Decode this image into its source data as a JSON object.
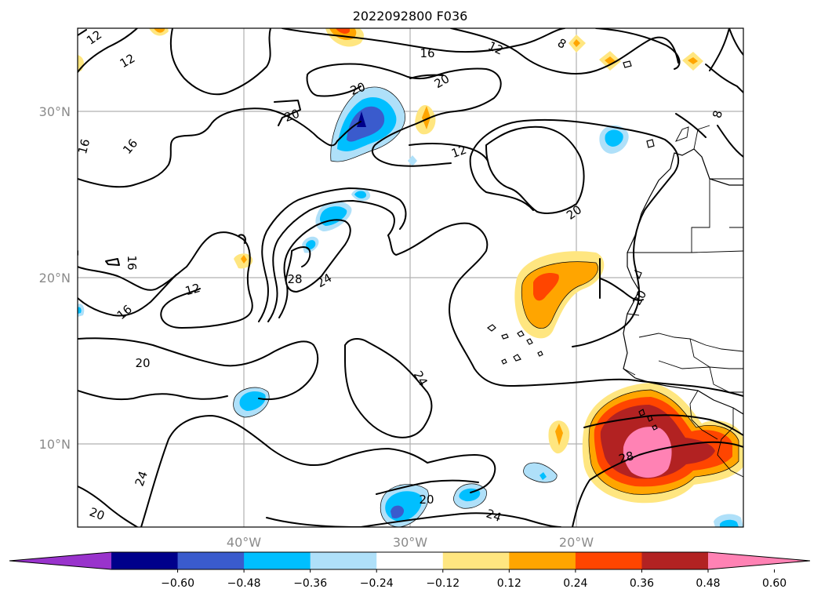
{
  "figure": {
    "title": "2022092800 F036"
  },
  "map": {
    "lat_labels": [
      "30°N",
      "20°N",
      "10°N"
    ],
    "lon_labels": [
      "40°W",
      "30°W",
      "20°W"
    ]
  },
  "contours": {
    "labels": [
      "12",
      "12",
      "16",
      "12",
      "8",
      "8",
      "20",
      "20",
      "20",
      "12",
      "16",
      "16",
      "20",
      "16",
      "12",
      "16",
      "28",
      "24",
      "20",
      "20",
      "24",
      "24",
      "20",
      "20",
      "24",
      "28"
    ]
  },
  "colorbar": {
    "ticks": [
      "−0.60",
      "−0.48",
      "−0.36",
      "−0.24",
      "−0.12",
      "0.12",
      "0.24",
      "0.36",
      "0.48",
      "0.60"
    ],
    "colors": [
      "#9933cc",
      "#00008b",
      "#3a5bcd",
      "#00bfff",
      "#afe0f9",
      "#ffffff",
      "#ffe680",
      "#ffa500",
      "#ff4500",
      "#b22222",
      "#ff82b4"
    ]
  }
}
